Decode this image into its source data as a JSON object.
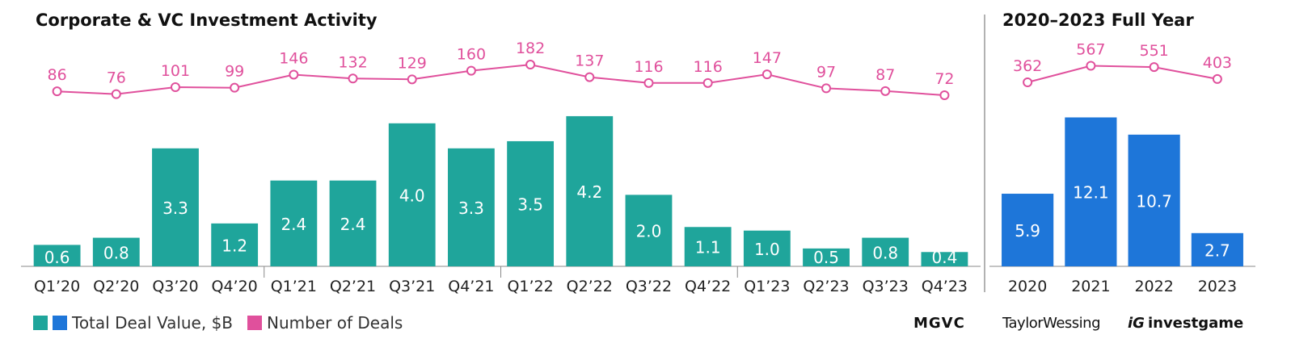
{
  "chart_data": [
    {
      "type": "bar",
      "title": "Corporate & VC Investment Activity",
      "categories": [
        "Q1’20",
        "Q2’20",
        "Q3’20",
        "Q4’20",
        "Q1’21",
        "Q2’21",
        "Q3’21",
        "Q4’21",
        "Q1’22",
        "Q2’22",
        "Q3’22",
        "Q4’22",
        "Q1’23",
        "Q2’23",
        "Q3’23",
        "Q4’23"
      ],
      "series": [
        {
          "name": "Total Deal Value, $B",
          "type": "bar",
          "color": "#1fa59b",
          "values": [
            0.6,
            0.8,
            3.3,
            1.2,
            2.4,
            2.4,
            4.0,
            3.3,
            3.5,
            4.2,
            2.0,
            1.1,
            1.0,
            0.5,
            0.8,
            0.4
          ]
        },
        {
          "name": "Number of Deals",
          "type": "line",
          "color": "#e0509c",
          "values": [
            86,
            76,
            101,
            99,
            146,
            132,
            129,
            160,
            182,
            137,
            116,
            116,
            147,
            97,
            87,
            72
          ]
        }
      ]
    },
    {
      "type": "bar",
      "title": "2020–2023 Full Year",
      "categories": [
        "2020",
        "2021",
        "2022",
        "2023"
      ],
      "series": [
        {
          "name": "Total Deal Value, $B",
          "type": "bar",
          "color": "#1e76d9",
          "values": [
            5.9,
            12.1,
            10.7,
            2.7
          ]
        },
        {
          "name": "Number of Deals",
          "type": "line",
          "color": "#e0509c",
          "values": [
            362,
            567,
            551,
            403
          ]
        }
      ]
    }
  ],
  "legend": {
    "items": [
      {
        "label": "Total Deal Value, $B",
        "colors": [
          "#1fa59b",
          "#1e76d9"
        ]
      },
      {
        "label": "Number of Deals",
        "colors": [
          "#e0509c"
        ]
      }
    ]
  },
  "logos": {
    "mgvc": "MGVC",
    "taylorwessing": "TaylorWessing",
    "investgame": "investgame"
  }
}
